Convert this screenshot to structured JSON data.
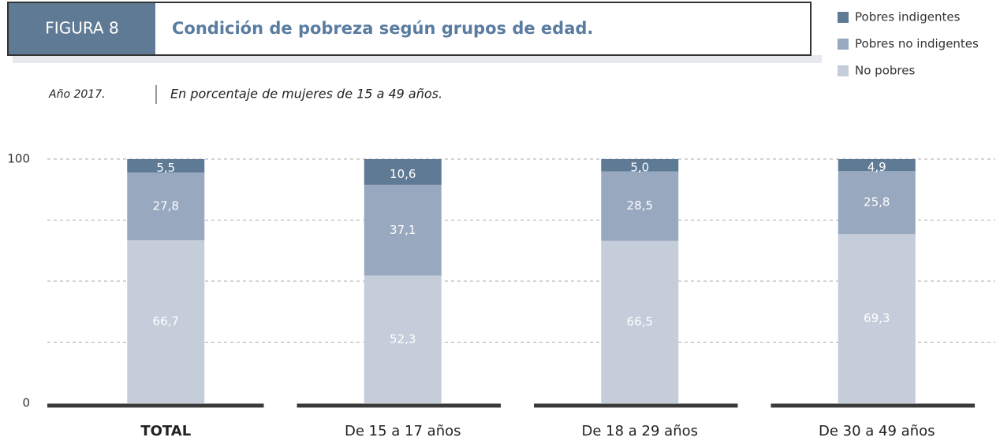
{
  "chart_data": {
    "type": "stacked_bar",
    "figure_label": "FIGURA 8",
    "title": "Condición de pobreza según grupos de edad.",
    "subtitle": "Año 2017.",
    "unit_note": "En porcentaje de mujeres de 15 a 49 años.",
    "categories": [
      "TOTAL",
      "De 15 a 17 años",
      "De 18 a 29 años",
      "De 30 a 49 años"
    ],
    "series": [
      {
        "name": "Pobres indigentes",
        "color": "#5f7a95",
        "values": [
          5.5,
          10.6,
          5.0,
          4.9
        ],
        "value_labels": [
          "5,5",
          "10,6",
          "5,0",
          "4,9"
        ]
      },
      {
        "name": "Pobres no indigentes",
        "color": "#97a8bf",
        "values": [
          27.8,
          37.1,
          28.5,
          25.8
        ],
        "value_labels": [
          "27,8",
          "37,1",
          "28,5",
          "25,8"
        ]
      },
      {
        "name": "No pobres",
        "color": "#c5cdda",
        "values": [
          66.7,
          52.3,
          66.5,
          69.3
        ],
        "value_labels": [
          "66,7",
          "52,3",
          "66,5",
          "69,3"
        ]
      }
    ],
    "ylim": [
      0,
      100
    ],
    "yticks": [
      0,
      100
    ],
    "ygrid": [
      25,
      50,
      75,
      100
    ]
  }
}
